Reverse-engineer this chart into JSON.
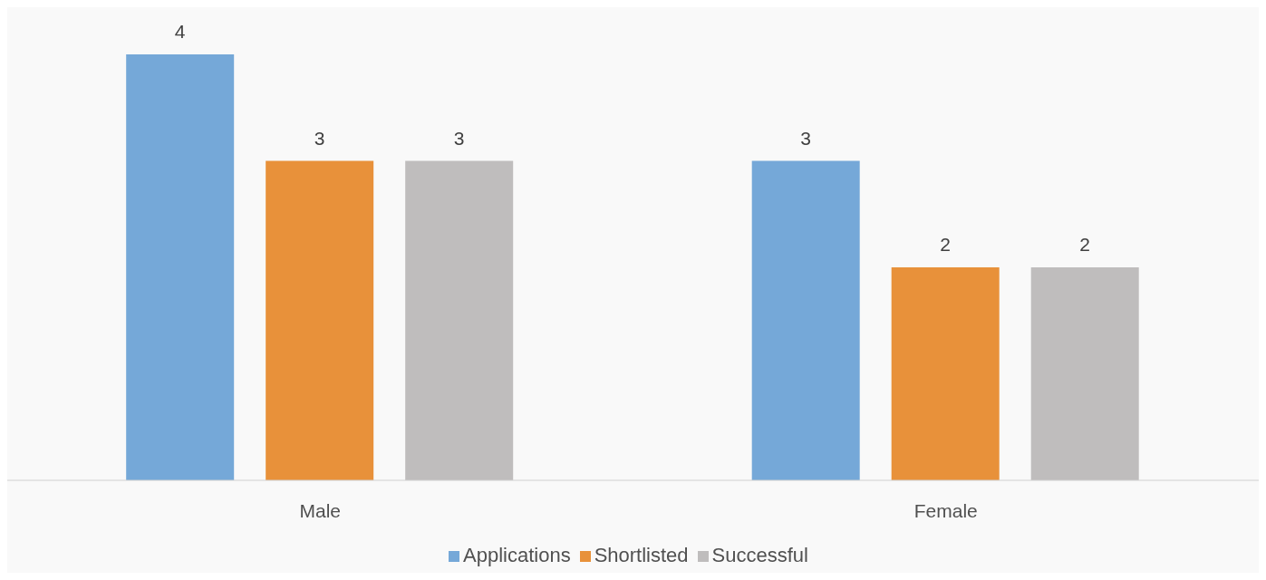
{
  "chart_data": {
    "type": "bar",
    "categories": [
      "Male",
      "Female"
    ],
    "series": [
      {
        "name": "Applications",
        "color": "#75a8d8",
        "values": [
          4,
          3
        ]
      },
      {
        "name": "Shortlisted",
        "color": "#e8913a",
        "values": [
          3,
          2
        ]
      },
      {
        "name": "Successful",
        "color": "#bfbdbd",
        "values": [
          3,
          2
        ]
      }
    ],
    "data_labels": true,
    "grid": false,
    "legend": "bottom"
  }
}
